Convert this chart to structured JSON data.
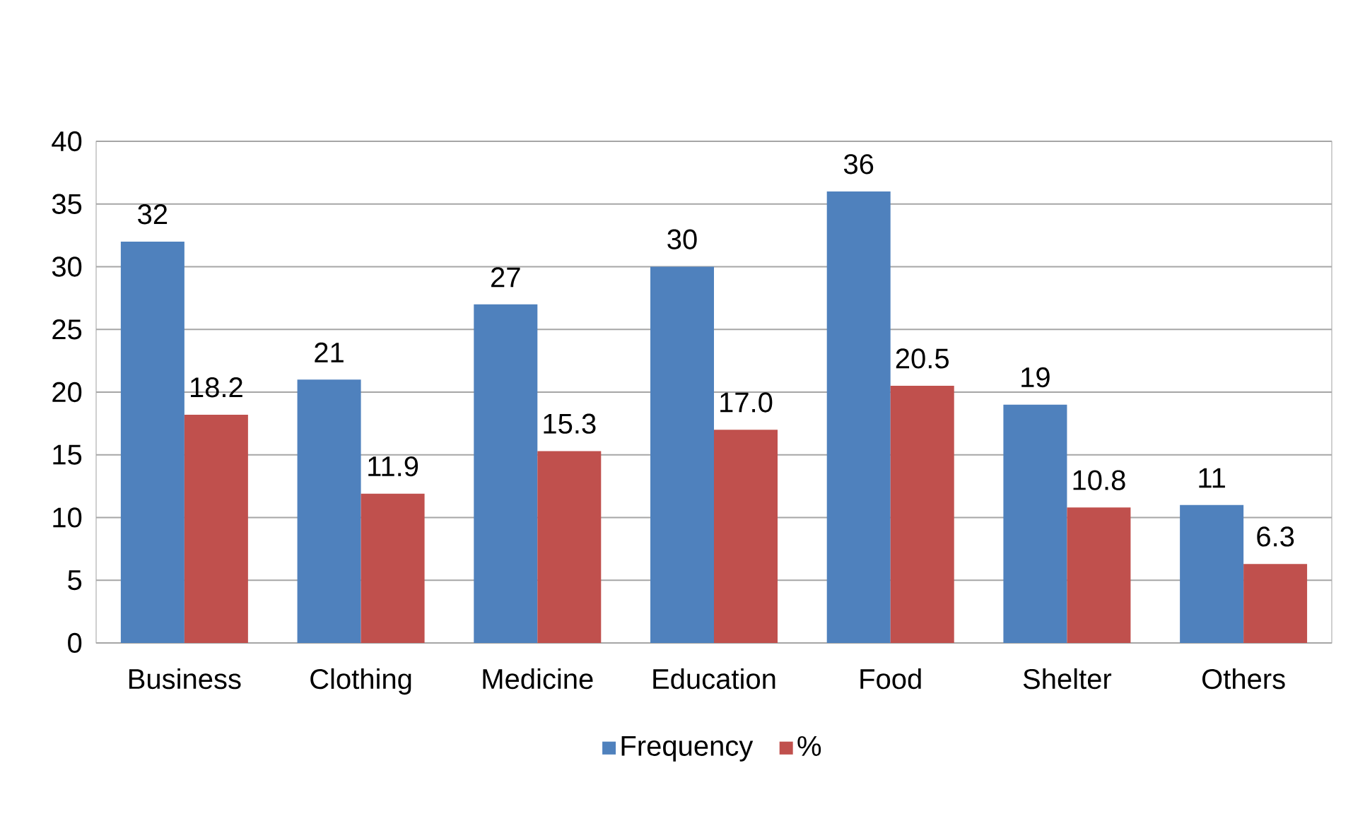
{
  "chart_data": {
    "type": "bar",
    "categories": [
      "Business",
      "Clothing",
      "Medicine",
      "Education",
      "Food",
      "Shelter",
      "Others"
    ],
    "series": [
      {
        "name": "Frequency",
        "color": "#4f81bd",
        "values": [
          32,
          21,
          27,
          30,
          36,
          19,
          11
        ],
        "value_labels": [
          "32",
          "21",
          "27",
          "30",
          "36",
          "19",
          "11"
        ]
      },
      {
        "name": "%",
        "color": "#c0504d",
        "values": [
          18.2,
          11.9,
          15.3,
          17.0,
          20.5,
          10.8,
          6.3
        ],
        "value_labels": [
          "18.2",
          "11.9",
          "15.3",
          "17.0",
          "20.5",
          "10.8",
          "6.3"
        ]
      }
    ],
    "ylim": [
      0,
      40
    ],
    "yticks": [
      0,
      5,
      10,
      15,
      20,
      25,
      30,
      35,
      40
    ],
    "grid": "y",
    "legend": "bottom"
  }
}
